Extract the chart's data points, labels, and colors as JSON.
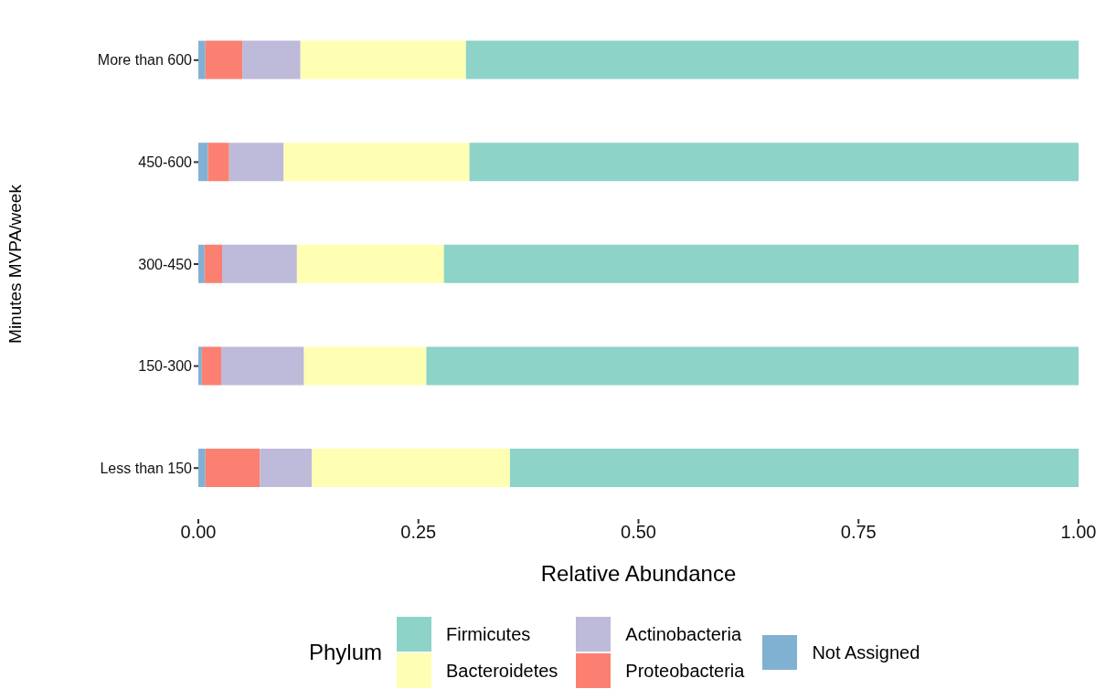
{
  "chart_data": {
    "type": "bar",
    "orientation": "horizontal",
    "stacked": true,
    "xlabel": "Relative Abundance",
    "ylabel": "Minutes MVPA/week",
    "legend_title": "Phylum",
    "legend": "bottom",
    "grid": false,
    "categories": [
      "More than 600",
      "450-600",
      "300-450",
      "150-300",
      "Less than 150"
    ],
    "xlim": [
      0,
      1
    ],
    "xticks": [
      {
        "value": 0,
        "label": "0.00"
      },
      {
        "value": 0.25,
        "label": "0.25"
      },
      {
        "value": 0.5,
        "label": "0.50"
      },
      {
        "value": 0.75,
        "label": "0.75"
      },
      {
        "value": 1,
        "label": "1.00"
      }
    ],
    "series": [
      {
        "name": "Not Assigned",
        "color": "#80b1d3",
        "values": [
          0.008,
          0.011,
          0.007,
          0.004,
          0.008
        ]
      },
      {
        "name": "Proteobacteria",
        "color": "#fb8072",
        "values": [
          0.042,
          0.024,
          0.02,
          0.022,
          0.062
        ]
      },
      {
        "name": "Actinobacteria",
        "color": "#bebada",
        "values": [
          0.066,
          0.062,
          0.085,
          0.094,
          0.059
        ]
      },
      {
        "name": "Bacteroidetes",
        "color": "#ffffb3",
        "values": [
          0.188,
          0.211,
          0.167,
          0.139,
          0.225
        ]
      },
      {
        "name": "Firmicutes",
        "color": "#8dd3c7",
        "values": [
          0.696,
          0.692,
          0.721,
          0.741,
          0.646
        ]
      }
    ]
  }
}
